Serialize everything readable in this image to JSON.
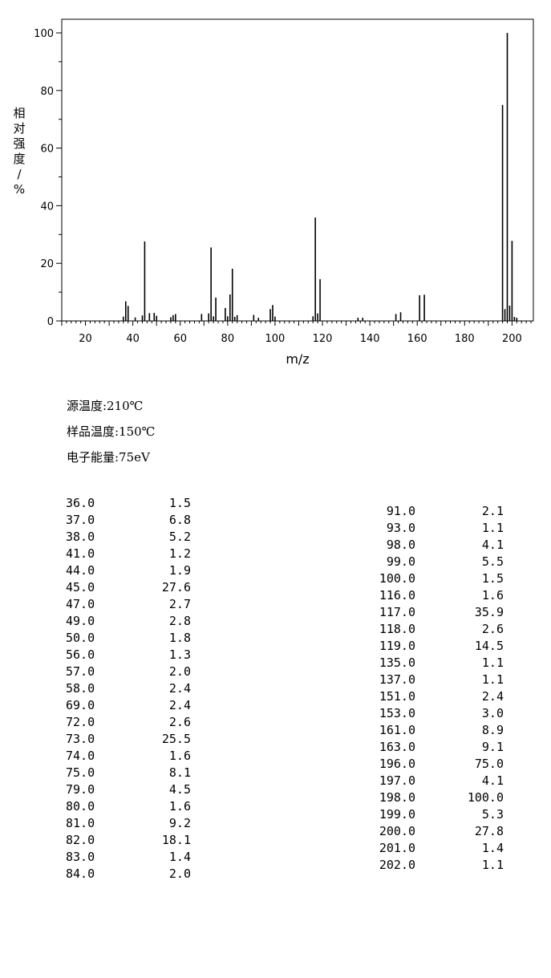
{
  "chart_data": {
    "type": "bar",
    "xlabel": "m/z",
    "ylabel": "相对强度/%",
    "xlim": [
      10,
      209
    ],
    "ylim": [
      0,
      100
    ],
    "x_ticks": [
      20,
      40,
      60,
      80,
      100,
      120,
      140,
      160,
      180,
      200
    ],
    "y_ticks": [
      0,
      20,
      40,
      60,
      80,
      100
    ],
    "grid": false,
    "peaks": [
      {
        "mz": 36,
        "intensity": 1.5
      },
      {
        "mz": 37,
        "intensity": 6.8
      },
      {
        "mz": 38,
        "intensity": 5.2
      },
      {
        "mz": 41,
        "intensity": 1.2
      },
      {
        "mz": 44,
        "intensity": 1.9
      },
      {
        "mz": 45,
        "intensity": 27.6
      },
      {
        "mz": 47,
        "intensity": 2.7
      },
      {
        "mz": 49,
        "intensity": 2.8
      },
      {
        "mz": 50,
        "intensity": 1.8
      },
      {
        "mz": 56,
        "intensity": 1.3
      },
      {
        "mz": 57,
        "intensity": 2.0
      },
      {
        "mz": 58,
        "intensity": 2.4
      },
      {
        "mz": 69,
        "intensity": 2.4
      },
      {
        "mz": 72,
        "intensity": 2.6
      },
      {
        "mz": 73,
        "intensity": 25.5
      },
      {
        "mz": 74,
        "intensity": 1.6
      },
      {
        "mz": 75,
        "intensity": 8.1
      },
      {
        "mz": 79,
        "intensity": 4.5
      },
      {
        "mz": 80,
        "intensity": 1.6
      },
      {
        "mz": 81,
        "intensity": 9.2
      },
      {
        "mz": 82,
        "intensity": 18.1
      },
      {
        "mz": 83,
        "intensity": 1.4
      },
      {
        "mz": 84,
        "intensity": 2.0
      },
      {
        "mz": 91,
        "intensity": 2.1
      },
      {
        "mz": 93,
        "intensity": 1.1
      },
      {
        "mz": 98,
        "intensity": 4.1
      },
      {
        "mz": 99,
        "intensity": 5.5
      },
      {
        "mz": 100,
        "intensity": 1.5
      },
      {
        "mz": 116,
        "intensity": 1.6
      },
      {
        "mz": 117,
        "intensity": 35.9
      },
      {
        "mz": 118,
        "intensity": 2.6
      },
      {
        "mz": 119,
        "intensity": 14.5
      },
      {
        "mz": 135,
        "intensity": 1.1
      },
      {
        "mz": 137,
        "intensity": 1.1
      },
      {
        "mz": 151,
        "intensity": 2.4
      },
      {
        "mz": 153,
        "intensity": 3.0
      },
      {
        "mz": 161,
        "intensity": 8.9
      },
      {
        "mz": 163,
        "intensity": 9.1
      },
      {
        "mz": 196,
        "intensity": 75.0
      },
      {
        "mz": 197,
        "intensity": 4.1
      },
      {
        "mz": 198,
        "intensity": 100.0
      },
      {
        "mz": 199,
        "intensity": 5.3
      },
      {
        "mz": 200,
        "intensity": 27.8
      },
      {
        "mz": 201,
        "intensity": 1.4
      },
      {
        "mz": 202,
        "intensity": 1.1
      }
    ]
  },
  "conditions": {
    "source_temp": "源温度:210℃",
    "sample_temp": "样品温度:150℃",
    "electron_energy": "电子能量:75eV"
  },
  "peak_table": {
    "left": [
      [
        "36.0",
        "1.5"
      ],
      [
        "37.0",
        "6.8"
      ],
      [
        "38.0",
        "5.2"
      ],
      [
        "41.0",
        "1.2"
      ],
      [
        "44.0",
        "1.9"
      ],
      [
        "45.0",
        "27.6"
      ],
      [
        "47.0",
        "2.7"
      ],
      [
        "49.0",
        "2.8"
      ],
      [
        "50.0",
        "1.8"
      ],
      [
        "56.0",
        "1.3"
      ],
      [
        "57.0",
        "2.0"
      ],
      [
        "58.0",
        "2.4"
      ],
      [
        "69.0",
        "2.4"
      ],
      [
        "72.0",
        "2.6"
      ],
      [
        "73.0",
        "25.5"
      ],
      [
        "74.0",
        "1.6"
      ],
      [
        "75.0",
        "8.1"
      ],
      [
        "79.0",
        "4.5"
      ],
      [
        "80.0",
        "1.6"
      ],
      [
        "81.0",
        "9.2"
      ],
      [
        "82.0",
        "18.1"
      ],
      [
        "83.0",
        "1.4"
      ],
      [
        "84.0",
        "2.0"
      ]
    ],
    "right": [
      [
        "91.0",
        "2.1"
      ],
      [
        "93.0",
        "1.1"
      ],
      [
        "98.0",
        "4.1"
      ],
      [
        "99.0",
        "5.5"
      ],
      [
        "100.0",
        "1.5"
      ],
      [
        "116.0",
        "1.6"
      ],
      [
        "117.0",
        "35.9"
      ],
      [
        "118.0",
        "2.6"
      ],
      [
        "119.0",
        "14.5"
      ],
      [
        "135.0",
        "1.1"
      ],
      [
        "137.0",
        "1.1"
      ],
      [
        "151.0",
        "2.4"
      ],
      [
        "153.0",
        "3.0"
      ],
      [
        "161.0",
        "8.9"
      ],
      [
        "163.0",
        "9.1"
      ],
      [
        "196.0",
        "75.0"
      ],
      [
        "197.0",
        "4.1"
      ],
      [
        "198.0",
        "100.0"
      ],
      [
        "199.0",
        "5.3"
      ],
      [
        "200.0",
        "27.8"
      ],
      [
        "201.0",
        "1.4"
      ],
      [
        "202.0",
        "1.1"
      ]
    ]
  }
}
